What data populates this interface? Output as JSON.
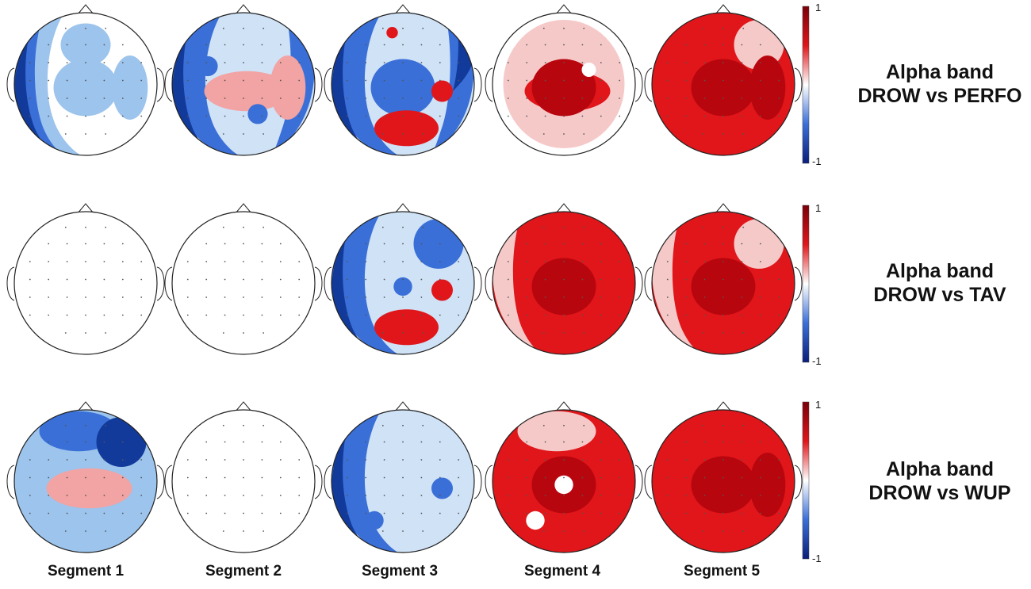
{
  "figure": {
    "rows": [
      {
        "label_line1": "Alpha band",
        "label_line2": "DROW vs PERFO",
        "maps": [
          {
            "segment": 1,
            "background": "#ffffff",
            "blobs": [
              {
                "kind": "ring-left",
                "color": "#9cc4ec"
              },
              {
                "kind": "edge-left",
                "color": "#3a6fd8"
              },
              {
                "kind": "edge-left-deep",
                "color": "#123a9a"
              },
              {
                "kind": "patch",
                "color": "#9cc4ec",
                "where": "upper-center"
              },
              {
                "kind": "patch",
                "color": "#9cc4ec",
                "where": "center"
              },
              {
                "kind": "patch",
                "color": "#9cc4ec",
                "where": "right"
              }
            ]
          },
          {
            "segment": 2,
            "background": "#cfe2f6",
            "blobs": [
              {
                "kind": "ring-left",
                "color": "#3a6fd8"
              },
              {
                "kind": "edge-left-deep",
                "color": "#123a9a"
              },
              {
                "kind": "ring-right",
                "color": "#3a6fd8"
              },
              {
                "kind": "patch",
                "color": "#f2a3a3",
                "where": "center-band"
              },
              {
                "kind": "patch",
                "color": "#f2a3a3",
                "where": "right"
              },
              {
                "kind": "spot",
                "color": "#3a6fd8",
                "where": "upper-left"
              },
              {
                "kind": "spot",
                "color": "#3a6fd8",
                "where": "lower-center"
              }
            ]
          },
          {
            "segment": 3,
            "background": "#cfe2f6",
            "blobs": [
              {
                "kind": "ring-left",
                "color": "#3a6fd8"
              },
              {
                "kind": "edge-left-deep",
                "color": "#123a9a"
              },
              {
                "kind": "ring-right",
                "color": "#3a6fd8"
              },
              {
                "kind": "edge-right-deep",
                "color": "#123a9a"
              },
              {
                "kind": "patch",
                "color": "#3a6fd8",
                "where": "center"
              },
              {
                "kind": "patch",
                "color": "#e0161a",
                "where": "bottom"
              },
              {
                "kind": "spot",
                "color": "#e0161a",
                "where": "right"
              },
              {
                "kind": "spot",
                "color": "#e0161a",
                "where": "top"
              }
            ]
          },
          {
            "segment": 4,
            "background": "#ffffff",
            "blobs": [
              {
                "kind": "patch",
                "color": "#f6c9c9",
                "where": "frame"
              },
              {
                "kind": "patch",
                "color": "#e0161a",
                "where": "center-band"
              },
              {
                "kind": "patch",
                "color": "#b8060e",
                "where": "center"
              },
              {
                "kind": "spot",
                "color": "#ffffff",
                "where": "upper-center"
              }
            ]
          },
          {
            "segment": 5,
            "background": "#e0161a",
            "blobs": [
              {
                "kind": "patch",
                "color": "#f6c9c9",
                "where": "top-right"
              },
              {
                "kind": "patch",
                "color": "#b8060e",
                "where": "center"
              },
              {
                "kind": "patch",
                "color": "#b8060e",
                "where": "right"
              }
            ]
          }
        ],
        "colorbar": {
          "max": "1",
          "min": "-1"
        }
      },
      {
        "label_line1": "Alpha band",
        "label_line2": "DROW vs TAV",
        "maps": [
          {
            "segment": 1,
            "background": "#ffffff",
            "blobs": []
          },
          {
            "segment": 2,
            "background": "#ffffff",
            "blobs": []
          },
          {
            "segment": 3,
            "background": "#cfe2f6",
            "blobs": [
              {
                "kind": "ring-left",
                "color": "#3a6fd8"
              },
              {
                "kind": "edge-left-deep",
                "color": "#123a9a"
              },
              {
                "kind": "patch",
                "color": "#3a6fd8",
                "where": "top-right"
              },
              {
                "kind": "patch",
                "color": "#e0161a",
                "where": "bottom"
              },
              {
                "kind": "spot",
                "color": "#e0161a",
                "where": "right"
              },
              {
                "kind": "spot",
                "color": "#3a6fd8",
                "where": "center"
              }
            ]
          },
          {
            "segment": 4,
            "background": "#e0161a",
            "blobs": [
              {
                "kind": "edge-left",
                "color": "#f6c9c9"
              },
              {
                "kind": "patch",
                "color": "#b8060e",
                "where": "center"
              }
            ]
          },
          {
            "segment": 5,
            "background": "#e0161a",
            "blobs": [
              {
                "kind": "edge-left",
                "color": "#f6c9c9"
              },
              {
                "kind": "patch",
                "color": "#f6c9c9",
                "where": "top-right"
              },
              {
                "kind": "patch",
                "color": "#b8060e",
                "where": "center"
              }
            ]
          }
        ],
        "colorbar": {
          "max": "1",
          "min": "-1"
        }
      },
      {
        "label_line1": "Alpha band",
        "label_line2": "DROW vs WUP",
        "maps": [
          {
            "segment": 1,
            "background": "#9cc4ec",
            "blobs": [
              {
                "kind": "patch",
                "color": "#3a6fd8",
                "where": "top"
              },
              {
                "kind": "patch",
                "color": "#123a9a",
                "where": "top-right"
              },
              {
                "kind": "patch",
                "color": "#f2a3a3",
                "where": "center-band"
              }
            ]
          },
          {
            "segment": 2,
            "background": "#ffffff",
            "blobs": []
          },
          {
            "segment": 3,
            "background": "#cfe2f6",
            "blobs": [
              {
                "kind": "ring-left",
                "color": "#3a6fd8"
              },
              {
                "kind": "edge-left-deep",
                "color": "#123a9a"
              },
              {
                "kind": "spot",
                "color": "#3a6fd8",
                "where": "right"
              },
              {
                "kind": "spot",
                "color": "#3a6fd8",
                "where": "lower-left"
              }
            ]
          },
          {
            "segment": 4,
            "background": "#e0161a",
            "blobs": [
              {
                "kind": "patch",
                "color": "#f6c9c9",
                "where": "top"
              },
              {
                "kind": "patch",
                "color": "#b8060e",
                "where": "center"
              },
              {
                "kind": "spot",
                "color": "#ffffff",
                "where": "center"
              },
              {
                "kind": "spot",
                "color": "#ffffff",
                "where": "lower-left"
              }
            ]
          },
          {
            "segment": 5,
            "background": "#e0161a",
            "blobs": [
              {
                "kind": "patch",
                "color": "#b8060e",
                "where": "center"
              },
              {
                "kind": "patch",
                "color": "#b8060e",
                "where": "right"
              }
            ]
          }
        ],
        "colorbar": {
          "max": "1",
          "min": "-1"
        }
      }
    ],
    "segment_labels": [
      "Segment 1",
      "Segment 2",
      "Segment 3",
      "Segment 4",
      "Segment 5"
    ],
    "colorbar_colors": {
      "top": "#7a0008",
      "mid": "#ffffff",
      "bottom": "#0a1f7a"
    }
  }
}
